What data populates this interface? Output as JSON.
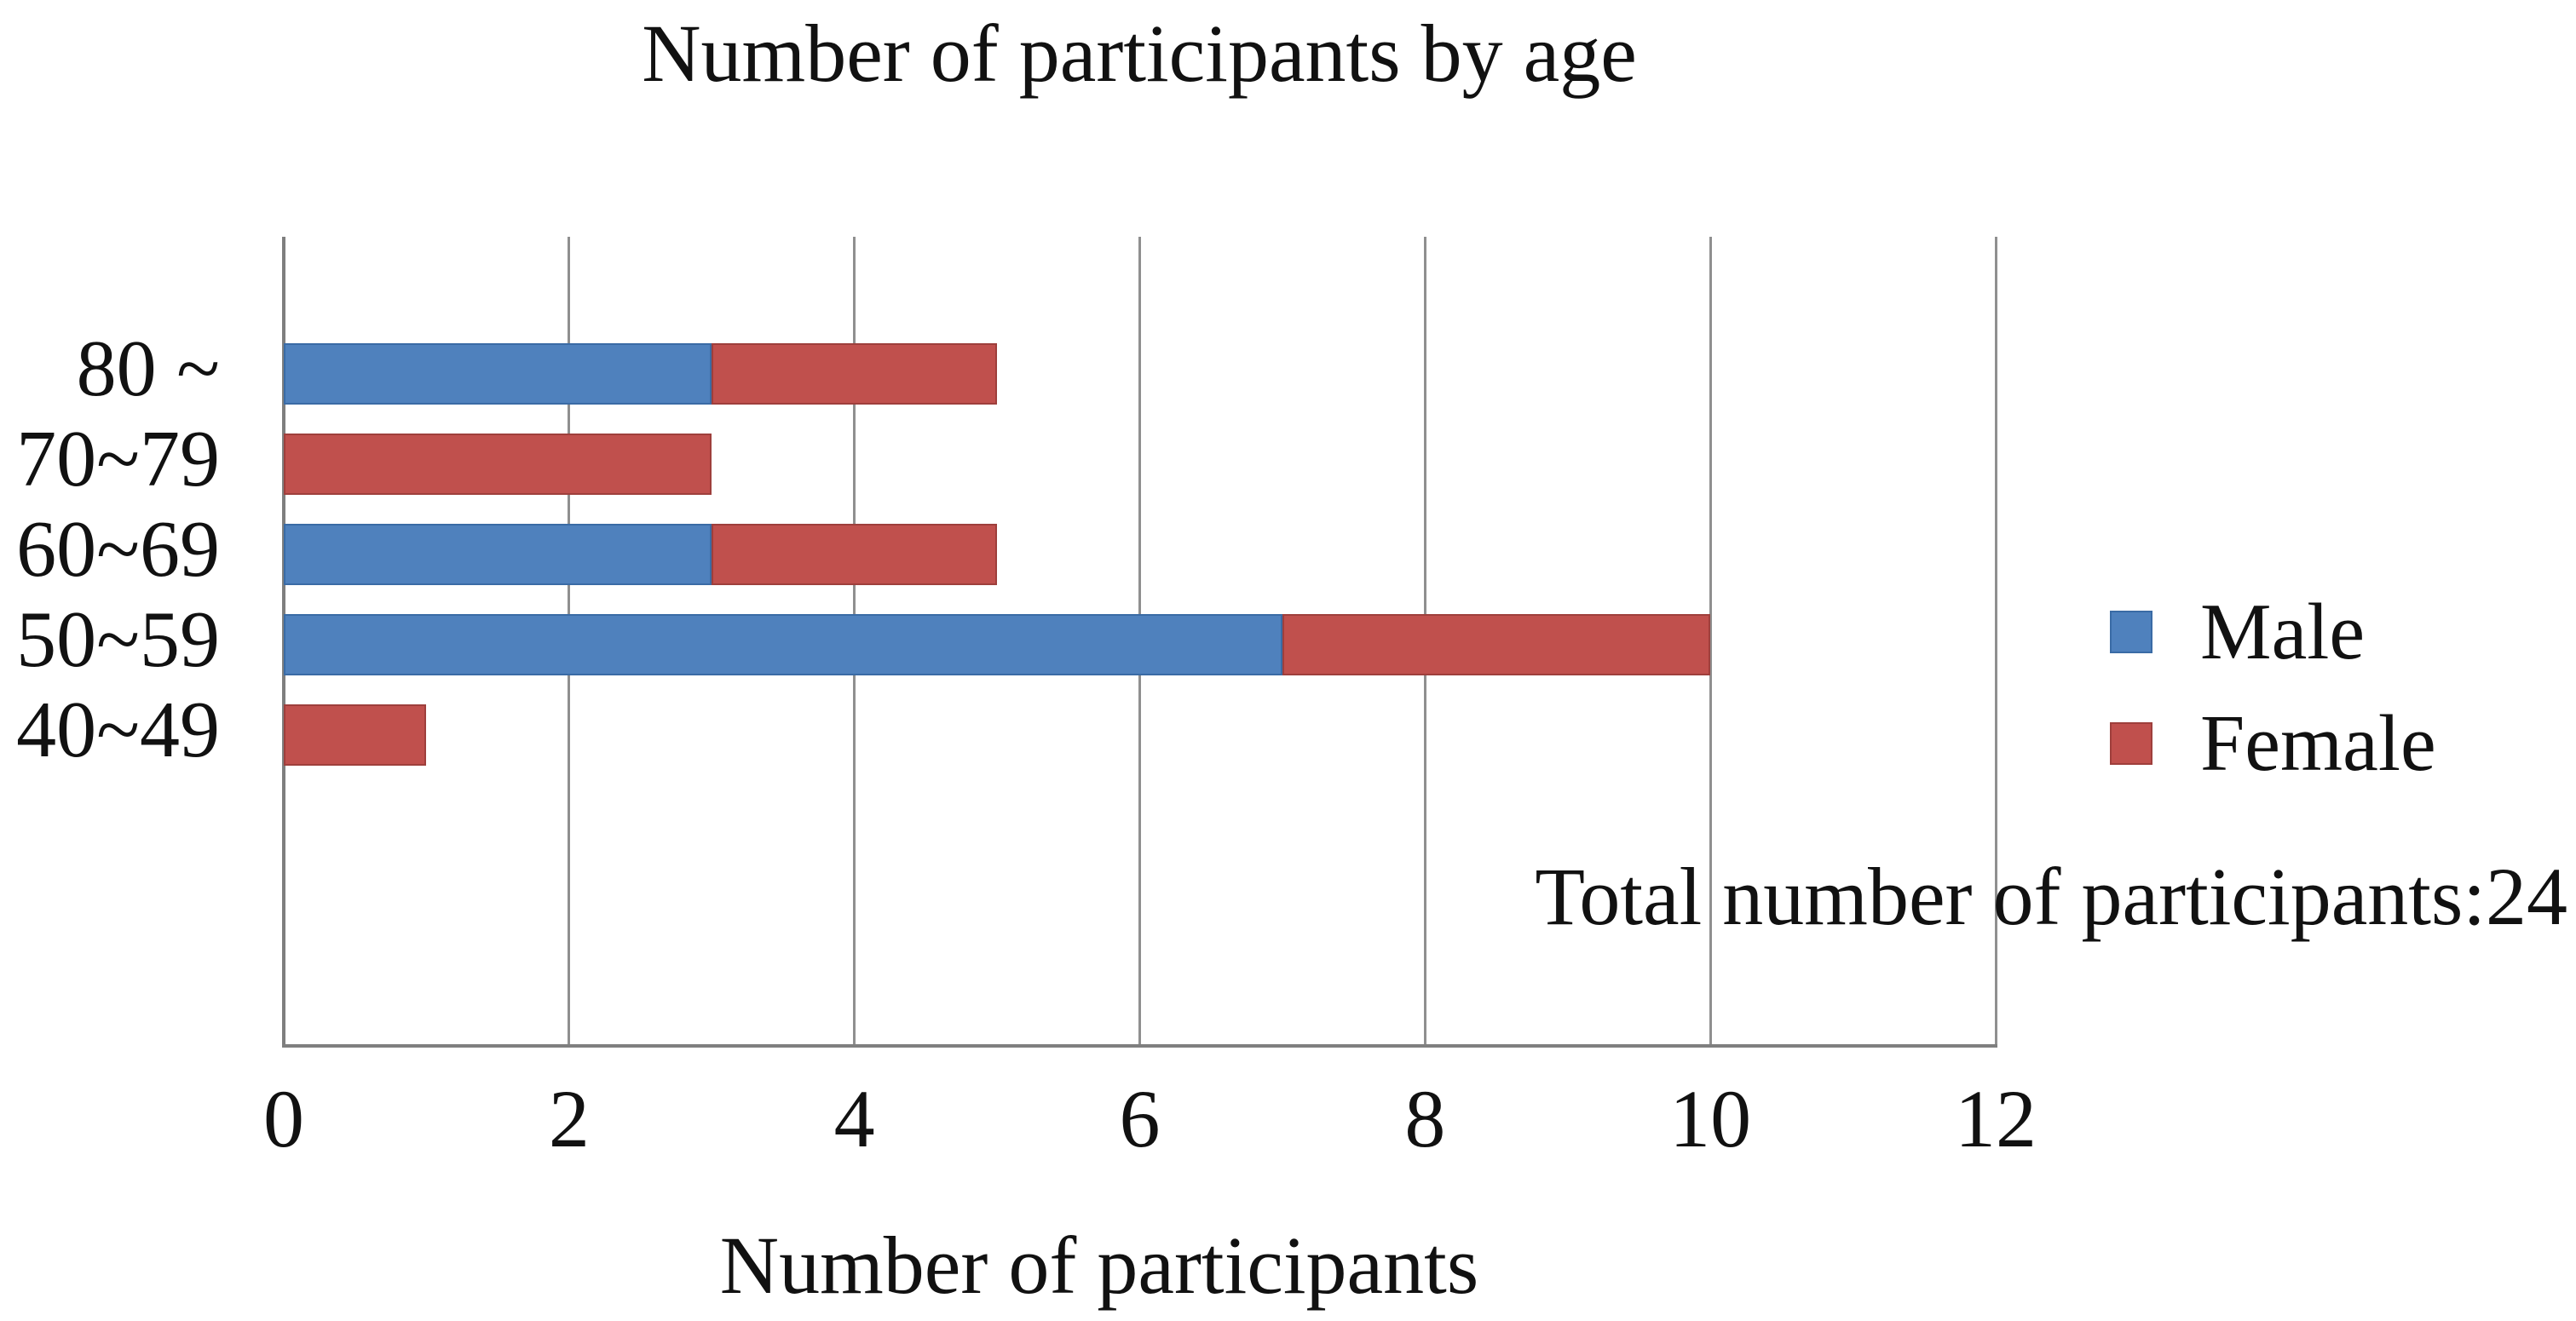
{
  "chart_data": {
    "type": "bar",
    "orientation": "horizontal",
    "stacked": true,
    "title": "Number of participants by age",
    "xlabel": "Number of participants",
    "ylabel": "",
    "categories": [
      "80 ~",
      "70~79",
      "60~69",
      "50~59",
      "40~49"
    ],
    "series": [
      {
        "name": "Male",
        "color": "#4F81BD",
        "border_color": "#3A6BA5",
        "values": [
          3,
          0,
          3,
          7,
          0
        ]
      },
      {
        "name": "Female",
        "color": "#C0504D",
        "border_color": "#9E3F3C",
        "values": [
          2,
          3,
          2,
          3,
          1
        ]
      }
    ],
    "x_ticks": [
      0,
      2,
      4,
      6,
      8,
      10,
      12
    ],
    "xlim": [
      0,
      12
    ],
    "grid": "vertical",
    "legend_position": "right",
    "annotation": "Total number of participants:24"
  }
}
